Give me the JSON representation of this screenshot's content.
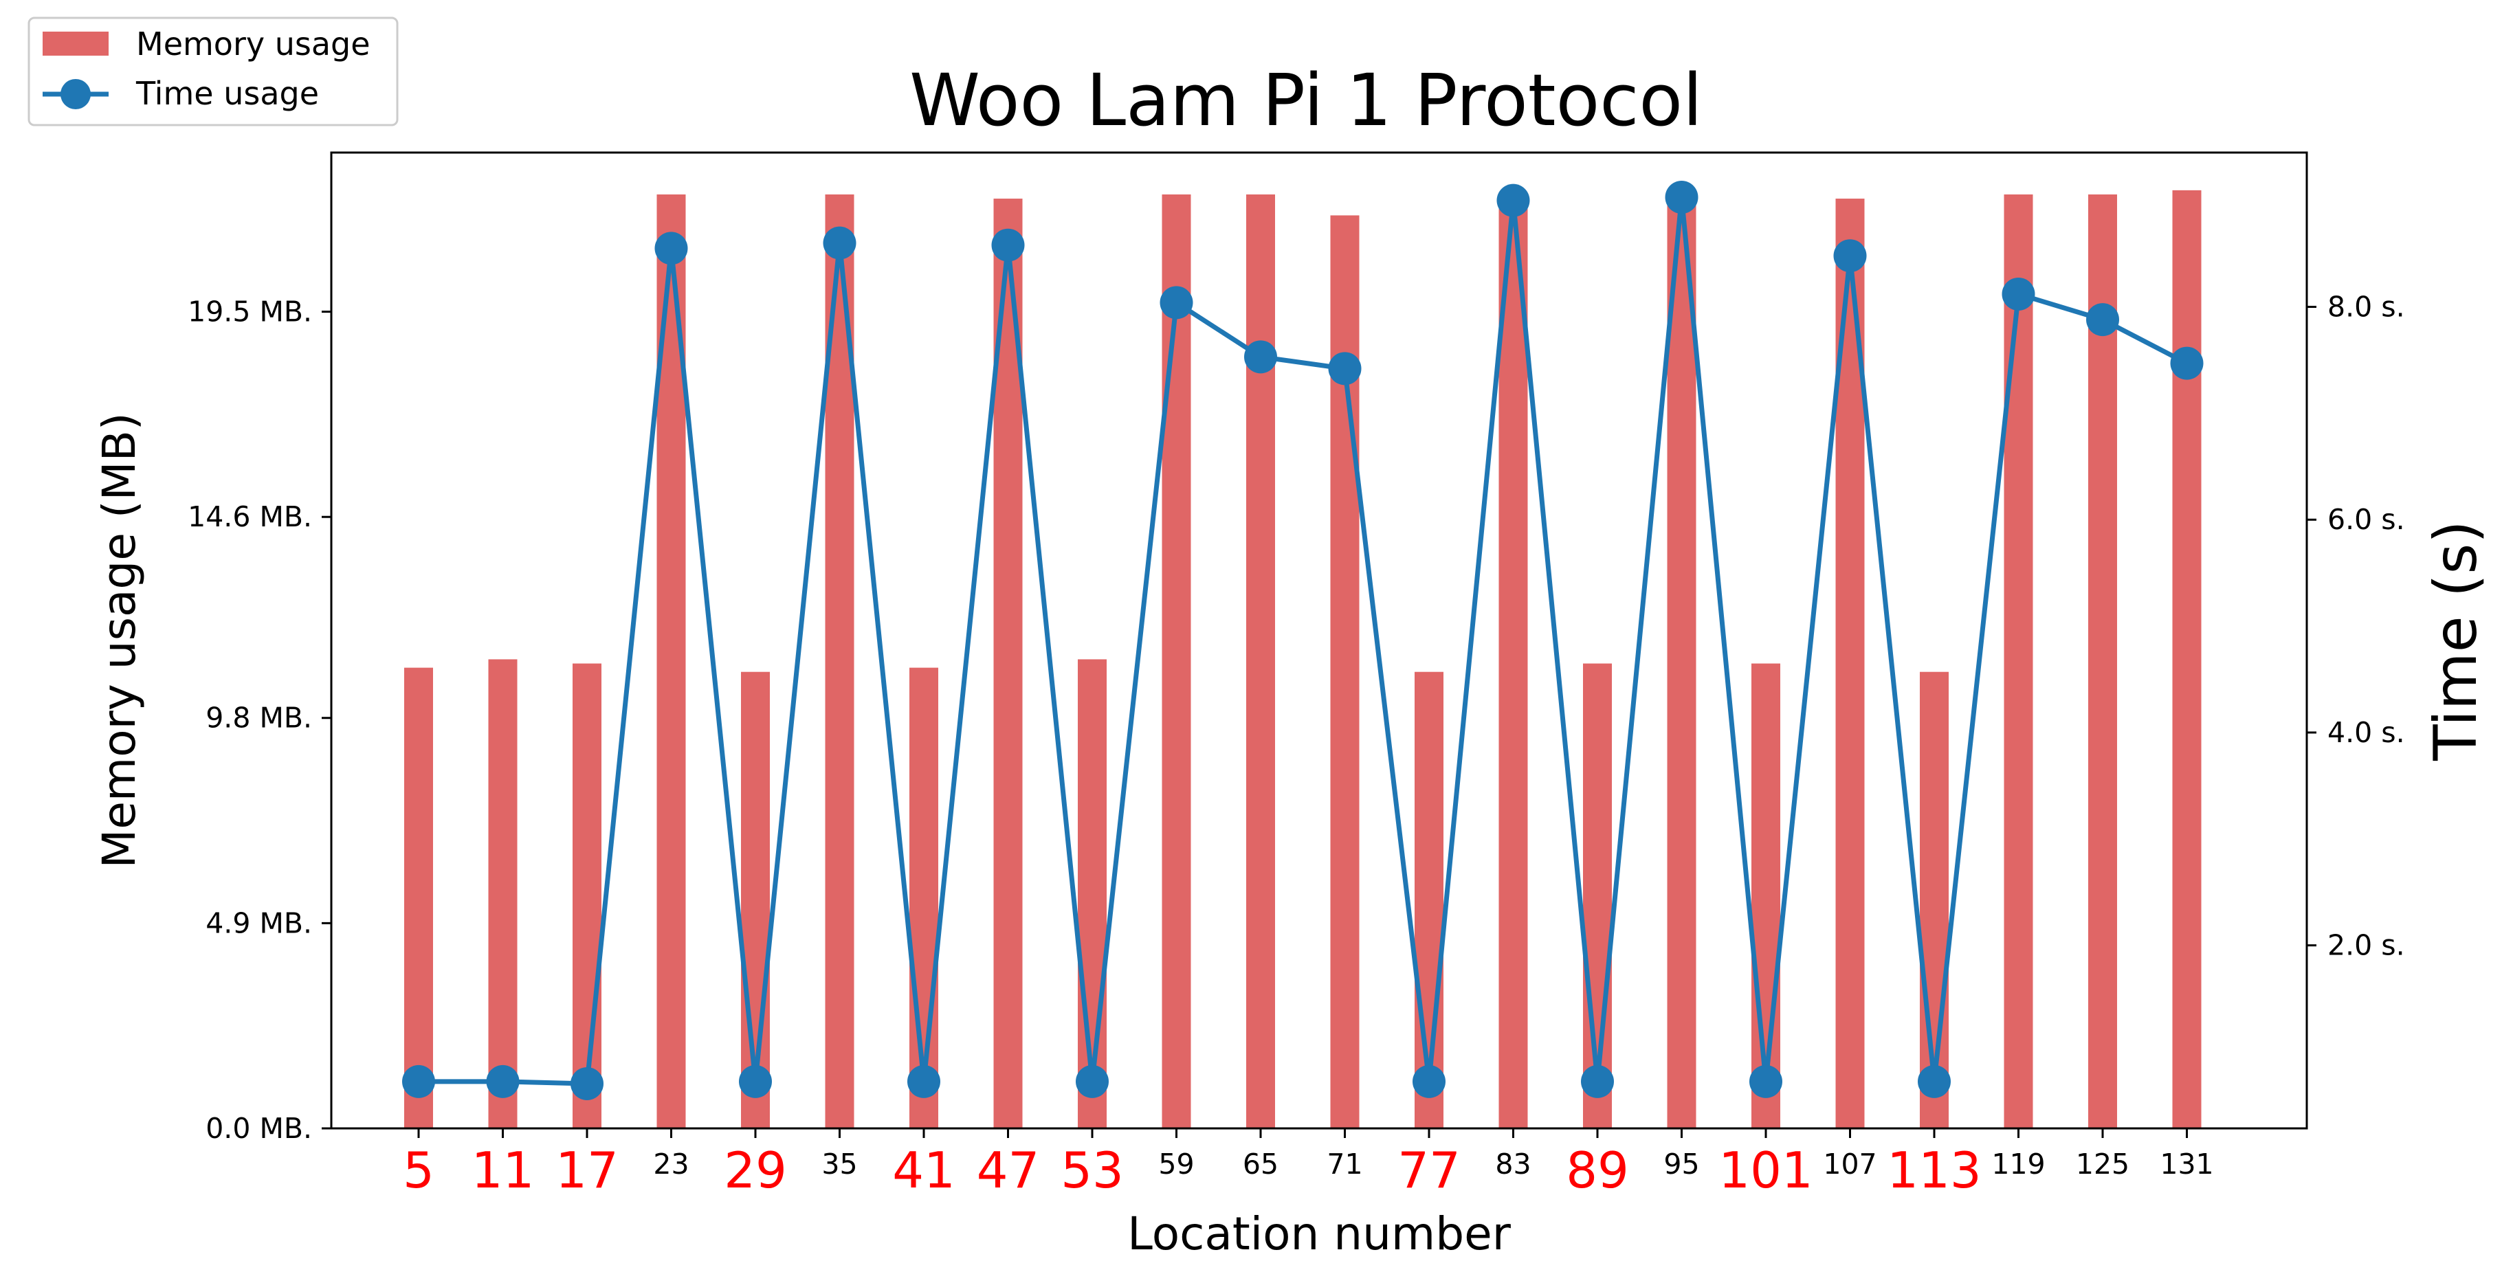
{
  "chart_data": {
    "type": "bar+line",
    "title": "Woo Lam Pi 1 Protocol",
    "xlabel": "Location number",
    "ylabel_left": "Memory usage (MB)",
    "ylabel_right": "Time (s)",
    "categories": [
      "5",
      "11",
      "17",
      "23",
      "29",
      "35",
      "41",
      "47",
      "53",
      "59",
      "65",
      "71",
      "77",
      "83",
      "89",
      "95",
      "101",
      "107",
      "113",
      "119",
      "125",
      "131"
    ],
    "highlighted_categories": [
      "5",
      "11",
      "17",
      "29",
      "41",
      "47",
      "53",
      "77",
      "89",
      "101",
      "113"
    ],
    "highlight_color": "#ff0000",
    "left_axis": {
      "ylim": [
        0,
        23.3
      ],
      "ticks": [
        0.0,
        4.9,
        9.8,
        14.6,
        19.5
      ],
      "tick_labels": [
        "0.0 MB.",
        "4.9 MB.",
        "9.8 MB.",
        "14.6 MB.",
        "19.5 MB."
      ]
    },
    "right_axis": {
      "ylim": [
        0.28,
        9.45
      ],
      "ticks": [
        2.0,
        4.0,
        6.0,
        8.0
      ],
      "tick_labels": [
        "2.0 s.",
        "4.0 s.",
        "6.0 s.",
        "8.0 s."
      ]
    },
    "legend": {
      "placement": "top-left",
      "entries": [
        {
          "label": "Memory usage",
          "kind": "bar"
        },
        {
          "label": "Time usage",
          "kind": "line-marker"
        }
      ]
    },
    "series": [
      {
        "name": "Memory usage",
        "kind": "bar",
        "color": "#e06666",
        "values": [
          11.0,
          11.2,
          11.1,
          22.3,
          10.9,
          22.3,
          11.0,
          22.2,
          11.2,
          22.3,
          22.3,
          21.8,
          10.9,
          22.3,
          11.1,
          22.3,
          11.1,
          22.2,
          10.9,
          22.3,
          22.3,
          22.4
        ]
      },
      {
        "name": "Time usage",
        "kind": "line",
        "color": "#1f77b4",
        "values": [
          0.72,
          0.72,
          0.7,
          8.55,
          0.72,
          8.6,
          0.72,
          8.58,
          0.72,
          8.04,
          7.53,
          7.42,
          0.72,
          9.0,
          0.72,
          9.03,
          0.72,
          8.48,
          0.72,
          8.12,
          7.88,
          7.47
        ]
      }
    ]
  }
}
